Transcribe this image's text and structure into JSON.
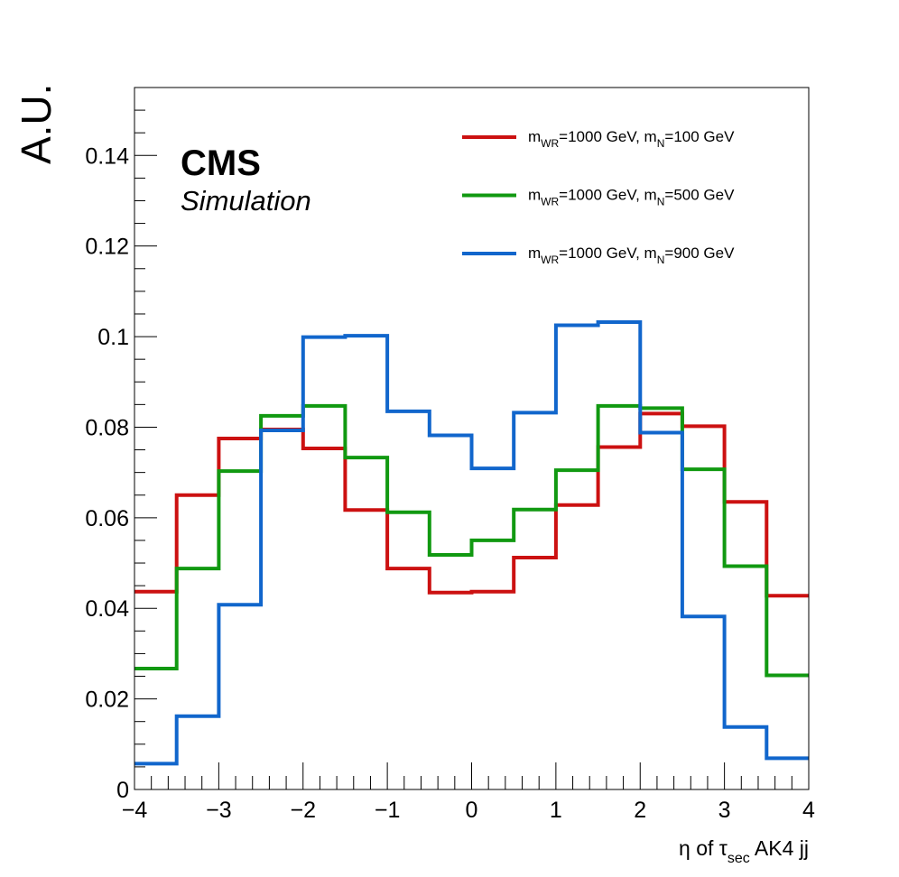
{
  "chart_data": {
    "type": "line",
    "step": true,
    "xlabel": "η of τ_sec AK4 jj",
    "xlabel_parts": {
      "pre": "η of τ",
      "sub": "sec",
      "post": " AK4 jj"
    },
    "ylabel": "A.U.",
    "xlim": [
      -4,
      4
    ],
    "ylim": [
      0,
      0.155
    ],
    "x_ticks": [
      -4,
      -3,
      -2,
      -1,
      0,
      1,
      2,
      3,
      4
    ],
    "x_tick_labels": [
      "−4",
      "−3",
      "−2",
      "−1",
      "0",
      "1",
      "2",
      "3",
      "4"
    ],
    "y_ticks": [
      0,
      0.02,
      0.04,
      0.06,
      0.08,
      0.1,
      0.12,
      0.14
    ],
    "y_tick_labels": [
      "0",
      "0.02",
      "0.04",
      "0.06",
      "0.08",
      "0.1",
      "0.12",
      "0.14"
    ],
    "bin_edges": [
      -4,
      -3.5,
      -3,
      -2.5,
      -2,
      -1.5,
      -1,
      -0.5,
      0,
      0.5,
      1,
      1.5,
      2,
      2.5,
      3,
      3.5,
      4
    ],
    "legend_position": "top-right",
    "grid": false,
    "series": [
      {
        "name": "m_WR=1000 GeV, m_N=100 GeV",
        "label_parts": {
          "wr_value": "=1000 GeV, m",
          "n_value": "=100 GeV"
        },
        "color": "#cc1111",
        "values": [
          0.0437,
          0.065,
          0.0775,
          0.0795,
          0.0753,
          0.0617,
          0.0488,
          0.0435,
          0.0437,
          0.0512,
          0.0628,
          0.0756,
          0.083,
          0.0802,
          0.0635,
          0.0428
        ]
      },
      {
        "name": "m_WR=1000 GeV, m_N=500 GeV",
        "label_parts": {
          "wr_value": "=1000 GeV, m",
          "n_value": "=500 GeV"
        },
        "color": "#119911",
        "values": [
          0.0267,
          0.0488,
          0.0703,
          0.0825,
          0.0847,
          0.0733,
          0.0612,
          0.0518,
          0.055,
          0.0618,
          0.0705,
          0.0847,
          0.0842,
          0.0707,
          0.0493,
          0.0252
        ]
      },
      {
        "name": "m_WR=1000 GeV, m_N=900 GeV",
        "label_parts": {
          "wr_value": "=1000 GeV, m",
          "n_value": "=900 GeV"
        },
        "color": "#1166cc",
        "values": [
          0.0057,
          0.0162,
          0.0408,
          0.0793,
          0.0999,
          0.1002,
          0.0835,
          0.0782,
          0.0709,
          0.0832,
          0.1025,
          0.1032,
          0.0788,
          0.0382,
          0.0138,
          0.0069
        ]
      }
    ],
    "annotations": {
      "experiment": "CMS",
      "status": "Simulation"
    },
    "legend_sub_wr": "WR",
    "legend_sub_n": "N",
    "legend_prefix": "m"
  }
}
